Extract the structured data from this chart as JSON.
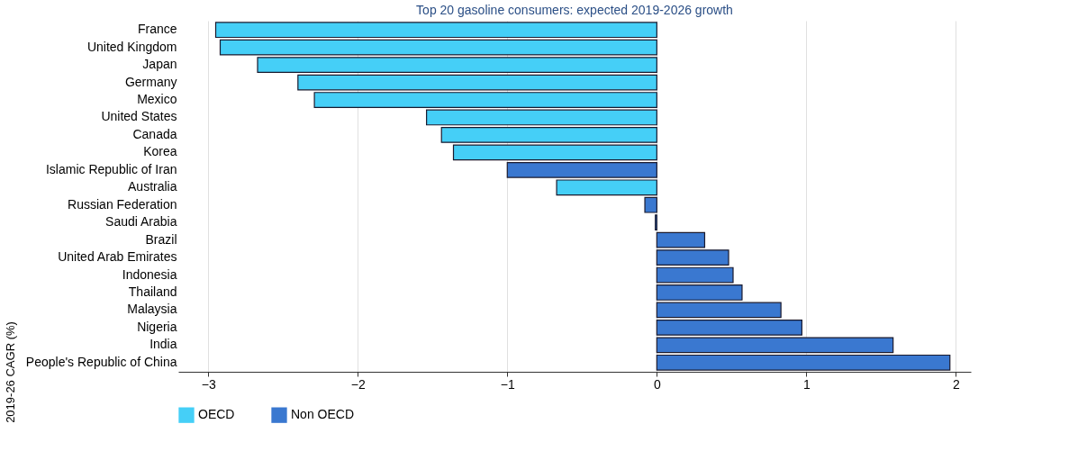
{
  "chart_data": {
    "type": "bar",
    "orientation": "horizontal",
    "title": "Top 20 gasoline consumers: expected 2019-2026 growth",
    "ylabel": "2019-26 CAGR (%)",
    "categories": [
      "France",
      "United Kingdom",
      "Japan",
      "Germany",
      "Mexico",
      "United States",
      "Canada",
      "Korea",
      "Islamic Republic of Iran",
      "Australia",
      "Russian Federation",
      "Saudi Arabia",
      "Brazil",
      "United Arab Emirates",
      "Indonesia",
      "Thailand",
      "Malaysia",
      "Nigeria",
      "India",
      "People's Republic of China"
    ],
    "series": [
      {
        "name": "OECD",
        "color": "#45cff7",
        "values": [
          -2.95,
          -2.92,
          -2.67,
          -2.4,
          -2.29,
          -1.54,
          -1.44,
          -1.36,
          null,
          -0.67,
          null,
          null,
          null,
          null,
          null,
          null,
          null,
          null,
          null,
          null
        ]
      },
      {
        "name": "Non OECD",
        "color": "#3a78d0",
        "values": [
          null,
          null,
          null,
          null,
          null,
          null,
          null,
          null,
          -1.0,
          null,
          -0.08,
          -0.01,
          0.32,
          0.48,
          0.51,
          0.57,
          0.83,
          0.97,
          1.58,
          1.96
        ]
      }
    ],
    "xlim": [
      -3.2,
      2.1
    ],
    "xticks": [
      -3,
      -2,
      -1,
      0,
      1,
      2
    ],
    "grid": "x",
    "legend": "bottom"
  }
}
